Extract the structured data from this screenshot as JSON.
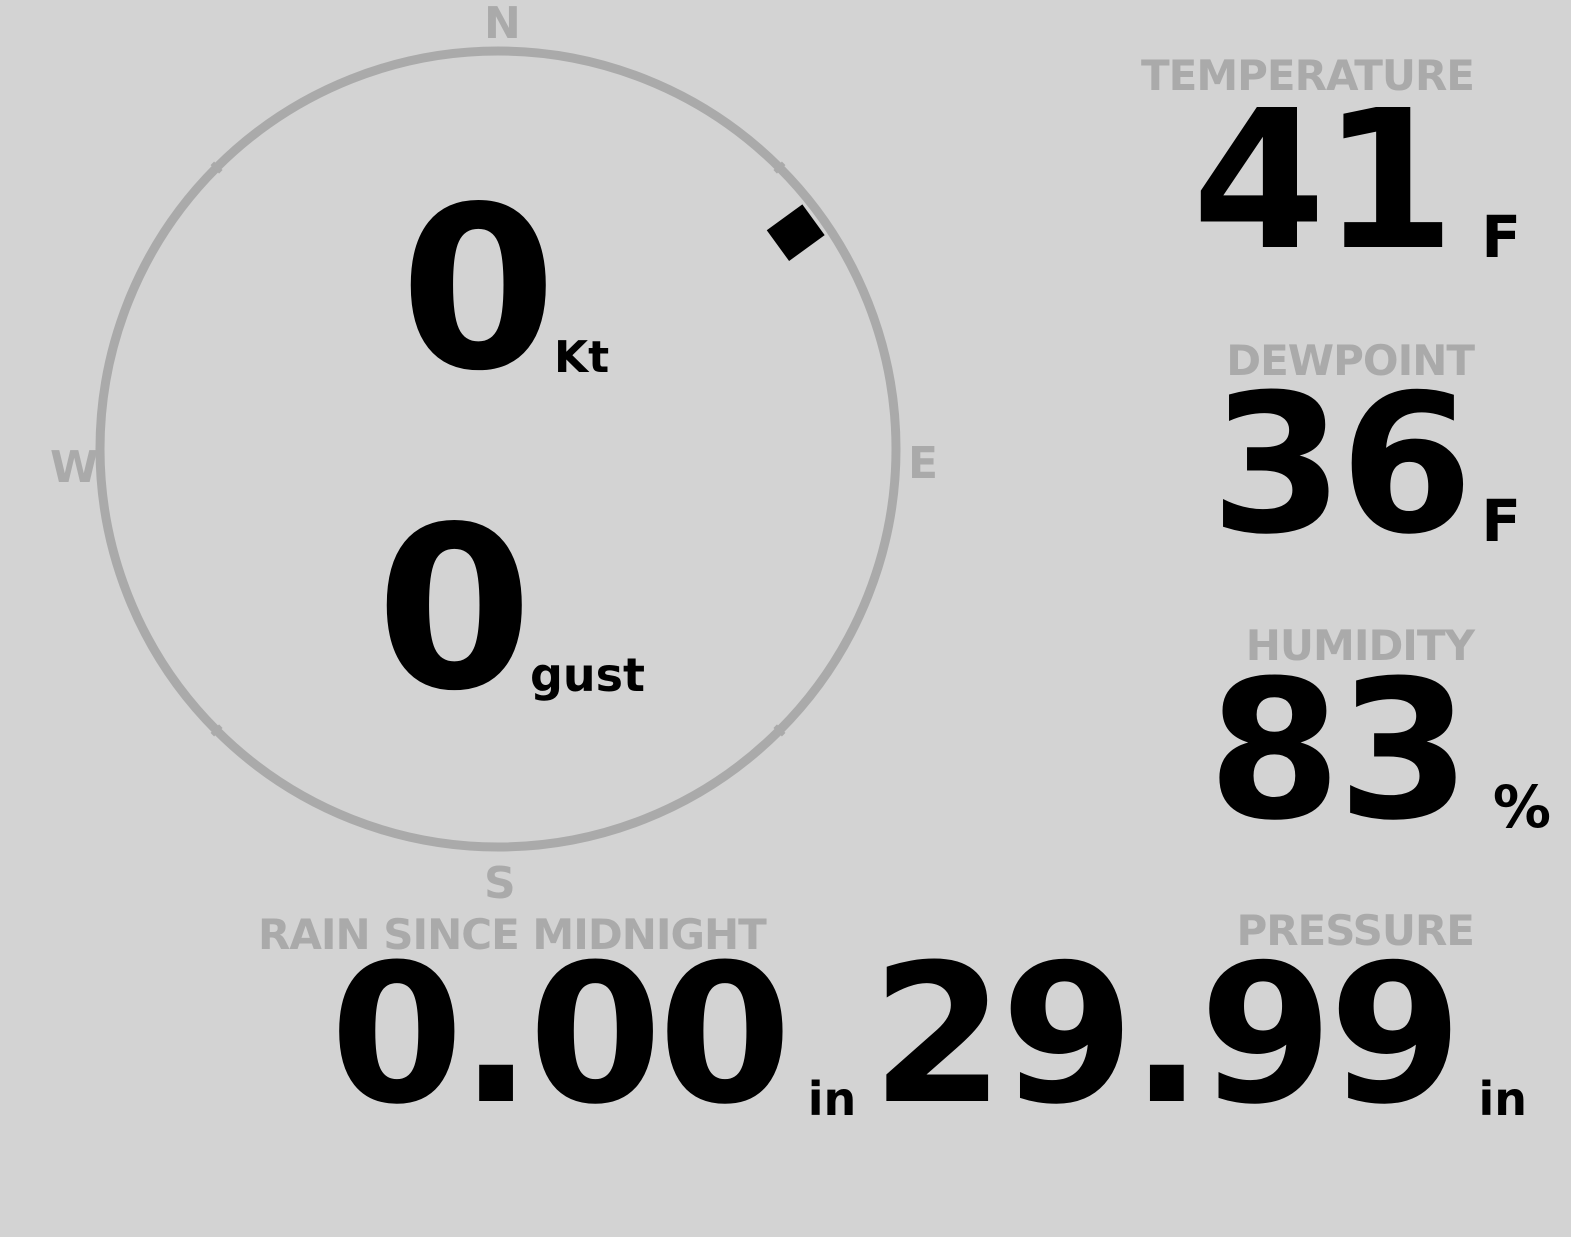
{
  "wind": {
    "speed": "0",
    "speed_unit": "Kt",
    "gust": "0",
    "gust_unit": "gust",
    "direction_degrees": 54,
    "cardinals": {
      "n": "N",
      "e": "E",
      "s": "S",
      "w": "W"
    }
  },
  "temperature": {
    "label": "TEMPERATURE",
    "value": "41",
    "unit": "F"
  },
  "dewpoint": {
    "label": "DEWPOINT",
    "value": "36",
    "unit": "F"
  },
  "humidity": {
    "label": "HUMIDITY",
    "value": "83",
    "unit": "%"
  },
  "rain": {
    "label": "RAIN SINCE MIDNIGHT",
    "value": "0.00",
    "unit": "in"
  },
  "pressure": {
    "label": "PRESSURE",
    "value": "29.99",
    "unit": "in"
  },
  "colors": {
    "background": "#d3d3d3",
    "muted": "#aaaaaa",
    "value": "#000000"
  }
}
